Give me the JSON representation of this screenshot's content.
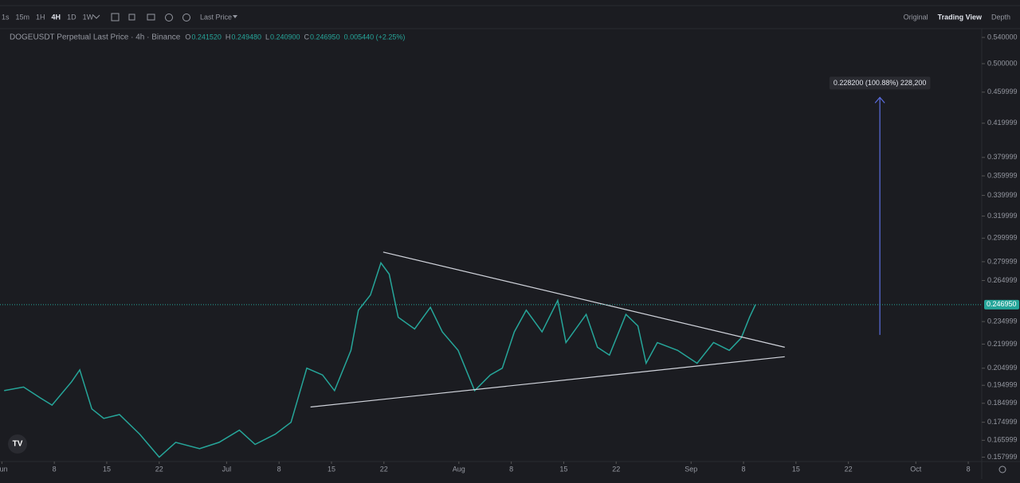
{
  "toolbar": {
    "intervals": [
      "1s",
      "15m",
      "1H",
      "4H",
      "1D",
      "1W"
    ],
    "active_interval": "4H",
    "price_source": "Last Price",
    "views": [
      "Original",
      "Trading View",
      "Depth"
    ],
    "active_view": "Trading View"
  },
  "legend": {
    "title": "DOGEUSDT Perpetual Last Price · 4h · Binance",
    "ohlc": [
      {
        "label": "O",
        "value": "0.241520"
      },
      {
        "label": "H",
        "value": "0.249480"
      },
      {
        "label": "L",
        "value": "0.240900"
      },
      {
        "label": "C",
        "value": "0.246950"
      }
    ],
    "change": "0.005440 (+2.25%)"
  },
  "chart_data": {
    "type": "line",
    "log": true,
    "color": "#26a69a",
    "x": [
      0.3,
      2.9,
      5.1,
      6.7,
      9.3,
      10.4,
      12.0,
      13.6,
      15.7,
      18.4,
      21.0,
      23.2,
      26.4,
      29.0,
      31.7,
      33.8,
      36.5,
      38.6,
      40.7,
      42.8,
      44.4,
      46.6,
      47.6,
      49.2,
      50.6,
      51.7,
      52.9,
      55.1,
      57.2,
      58.8,
      60.9,
      63.1,
      65.2,
      66.8,
      68.4,
      70.0,
      72.1,
      74.2,
      75.3,
      78.0,
      79.5,
      81.1,
      83.3,
      84.9,
      86.0,
      87.5,
      90.2,
      92.8,
      95.0,
      97.1,
      98.7,
      99.8,
      100.6
    ],
    "values": [
      0.192,
      0.194,
      0.188,
      0.184,
      0.197,
      0.204,
      0.182,
      0.177,
      0.179,
      0.169,
      0.158,
      0.165,
      0.162,
      0.165,
      0.171,
      0.164,
      0.169,
      0.175,
      0.205,
      0.201,
      0.192,
      0.216,
      0.243,
      0.254,
      0.279,
      0.27,
      0.238,
      0.23,
      0.245,
      0.228,
      0.216,
      0.192,
      0.201,
      0.205,
      0.228,
      0.243,
      0.228,
      0.25,
      0.221,
      0.24,
      0.218,
      0.213,
      0.24,
      0.232,
      0.208,
      0.221,
      0.216,
      0.208,
      0.221,
      0.216,
      0.224,
      0.238,
      0.247
    ],
    "xlim": [
      -0.25,
      130.8
    ],
    "ylim": [
      0.156,
      0.554
    ],
    "xticks": [
      {
        "value": 0,
        "label": "Jun"
      },
      {
        "value": 7,
        "label": "8"
      },
      {
        "value": 14,
        "label": "15"
      },
      {
        "value": 21,
        "label": "22"
      },
      {
        "value": 30,
        "label": "Jul"
      },
      {
        "value": 37,
        "label": "8"
      },
      {
        "value": 44,
        "label": "15"
      },
      {
        "value": 51,
        "label": "22"
      },
      {
        "value": 61,
        "label": "Aug"
      },
      {
        "value": 68,
        "label": "8"
      },
      {
        "value": 75,
        "label": "15"
      },
      {
        "value": 82,
        "label": "22"
      },
      {
        "value": 92,
        "label": "Sep"
      },
      {
        "value": 99,
        "label": "8"
      },
      {
        "value": 106,
        "label": "15"
      },
      {
        "value": 113,
        "label": "22"
      },
      {
        "value": 122,
        "label": "Oct"
      },
      {
        "value": 129,
        "label": "8"
      }
    ],
    "yticks": [
      {
        "value": 0.54,
        "label": "0.540000"
      },
      {
        "value": 0.5,
        "label": "0.500000"
      },
      {
        "value": 0.459999,
        "label": "0.459999"
      },
      {
        "value": 0.419999,
        "label": "0.419999"
      },
      {
        "value": 0.379999,
        "label": "0.379999"
      },
      {
        "value": 0.359999,
        "label": "0.359999"
      },
      {
        "value": 0.339999,
        "label": "0.339999"
      },
      {
        "value": 0.319999,
        "label": "0.319999"
      },
      {
        "value": 0.299999,
        "label": "0.299999"
      },
      {
        "value": 0.279999,
        "label": "0.279999"
      },
      {
        "value": 0.264999,
        "label": "0.264999"
      },
      {
        "value": 0.234999,
        "label": "0.234999"
      },
      {
        "value": 0.219999,
        "label": "0.219999"
      },
      {
        "value": 0.204999,
        "label": "0.204999"
      },
      {
        "value": 0.194999,
        "label": "0.194999"
      },
      {
        "value": 0.184999,
        "label": "0.184999"
      },
      {
        "value": 0.174999,
        "label": "0.174999"
      },
      {
        "value": 0.165999,
        "label": "0.165999"
      },
      {
        "value": 0.157999,
        "label": "0.157999"
      }
    ],
    "last_price": {
      "value": 0.24695,
      "label": "0.246950"
    },
    "trendlines": [
      {
        "x": [
          50.9,
          104.5
        ],
        "values": [
          0.288,
          0.218
        ]
      },
      {
        "x": [
          41.2,
          104.5
        ],
        "values": [
          0.183,
          0.212
        ]
      }
    ],
    "projection": {
      "x": 117.2,
      "values": [
        0.226,
        0.453
      ],
      "label": "0.228200 (100.88%) 228,200"
    }
  }
}
